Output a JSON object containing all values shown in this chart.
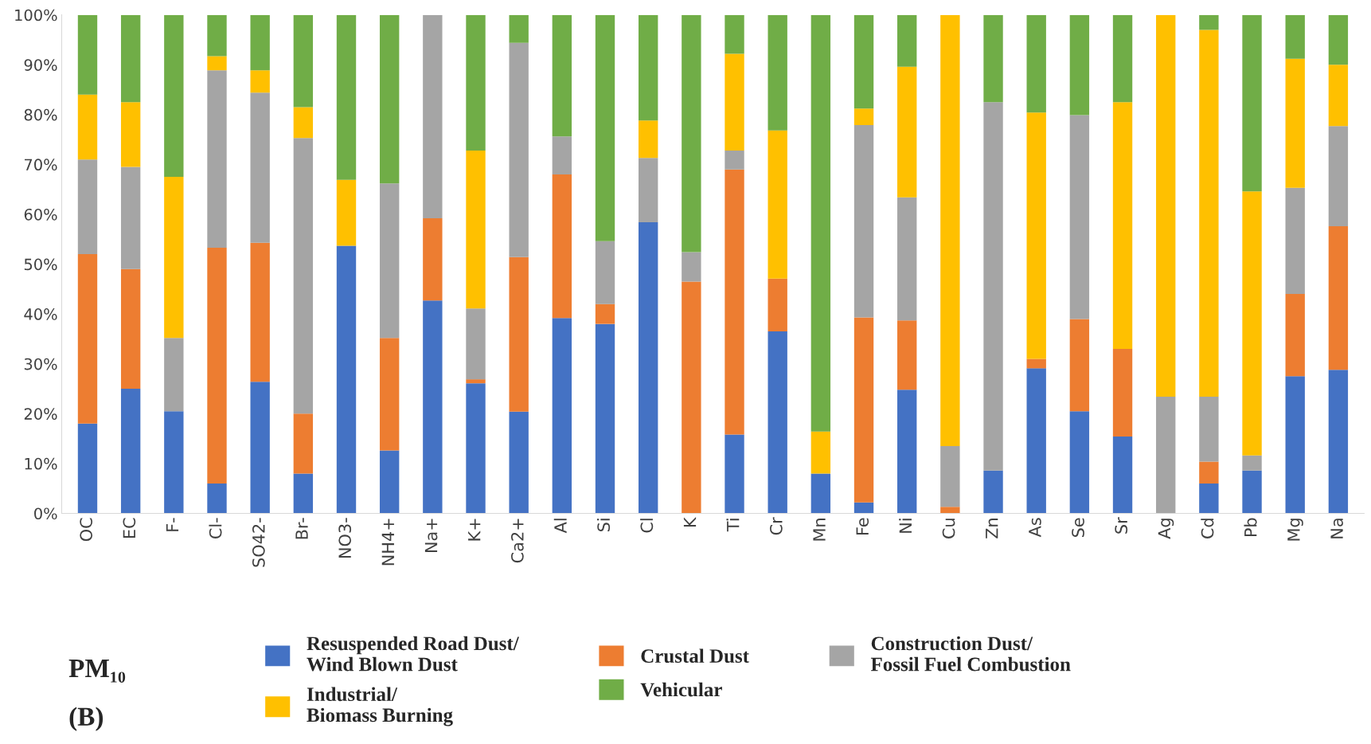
{
  "chart_data": {
    "type": "bar",
    "stacked": true,
    "categories": [
      "OC",
      "EC",
      "F-",
      "Cl-",
      "SO42-",
      "Br-",
      "NO3-",
      "NH4+",
      "Na+",
      "K+",
      "Ca2+",
      "Al",
      "Si",
      "Cl",
      "K",
      "Ti",
      "Cr",
      "Mn",
      "Fe",
      "Ni",
      "Cu",
      "Zn",
      "As",
      "Se",
      "Sr",
      "Ag",
      "Cd",
      "Pb",
      "Mg",
      "Na"
    ],
    "series": [
      {
        "name": "Resuspended Road Dust/\nWind Blown Dust",
        "color": "#4472c4",
        "values": [
          18,
          25,
          20.5,
          6,
          26.4,
          8,
          53.7,
          12.6,
          42.7,
          26.1,
          20.4,
          39.2,
          38,
          58.4,
          0,
          15.8,
          36.5,
          8,
          2.2,
          24.8,
          0,
          8.6,
          29.1,
          20.5,
          15.4,
          0,
          6,
          8.6,
          27.5,
          28.8
        ]
      },
      {
        "name": "Crustal Dust",
        "color": "#ed7d31",
        "values": [
          34,
          24,
          0,
          47.3,
          27.9,
          12,
          0,
          22.6,
          16.5,
          0.8,
          31,
          28.8,
          4,
          0,
          46.5,
          53.2,
          10.6,
          0,
          37.1,
          13.9,
          1.3,
          0,
          1.9,
          18.5,
          17.6,
          0,
          4.4,
          0,
          16.5,
          28.8
        ]
      },
      {
        "name": "Construction Dust/\nFossil Fuel Combustion",
        "color": "#a5a5a5",
        "values": [
          19,
          20.5,
          14.7,
          35.6,
          30.1,
          55.3,
          0,
          31,
          40.8,
          14.2,
          43,
          7.6,
          12.6,
          12.9,
          5.9,
          3.8,
          0,
          0,
          38.6,
          24.7,
          12.2,
          73.9,
          0,
          40.9,
          0,
          23.4,
          13,
          3,
          21.3,
          20.1
        ]
      },
      {
        "name": "Industrial/\nBiomass Burning",
        "color": "#ffc000",
        "values": [
          13,
          13,
          32.3,
          2.8,
          4.5,
          6.2,
          13.2,
          0,
          0,
          31.7,
          0,
          0,
          0,
          7.5,
          0,
          19.4,
          29.7,
          8.4,
          3.3,
          26.2,
          86.5,
          0,
          49.4,
          0,
          49.5,
          76.6,
          73.6,
          53,
          25.9,
          12.3
        ]
      },
      {
        "name": "Vehicular",
        "color": "#70ad47",
        "values": [
          16,
          17.5,
          32.5,
          8.3,
          11.1,
          18.5,
          33.1,
          33.8,
          0,
          27.2,
          5.6,
          24.4,
          45.4,
          21.2,
          47.6,
          7.8,
          23.2,
          83.6,
          18.8,
          10.4,
          0,
          17.5,
          19.6,
          20.1,
          17.5,
          0,
          3,
          35.4,
          8.8,
          10
        ]
      }
    ],
    "ylim": [
      0,
      100
    ],
    "yticks": [
      {
        "value": 0,
        "label": "0%"
      },
      {
        "value": 10,
        "label": "10%"
      },
      {
        "value": 20,
        "label": "20%"
      },
      {
        "value": 30,
        "label": "30%"
      },
      {
        "value": 40,
        "label": "40%"
      },
      {
        "value": 50,
        "label": "50%"
      },
      {
        "value": 60,
        "label": "60%"
      },
      {
        "value": 70,
        "label": "70%"
      },
      {
        "value": 80,
        "label": "80%"
      },
      {
        "value": 90,
        "label": "90%"
      },
      {
        "value": 100,
        "label": "100%"
      }
    ],
    "grid": false,
    "legend": "bottom",
    "annotations": [
      "PM₁₀",
      "(B)"
    ]
  }
}
